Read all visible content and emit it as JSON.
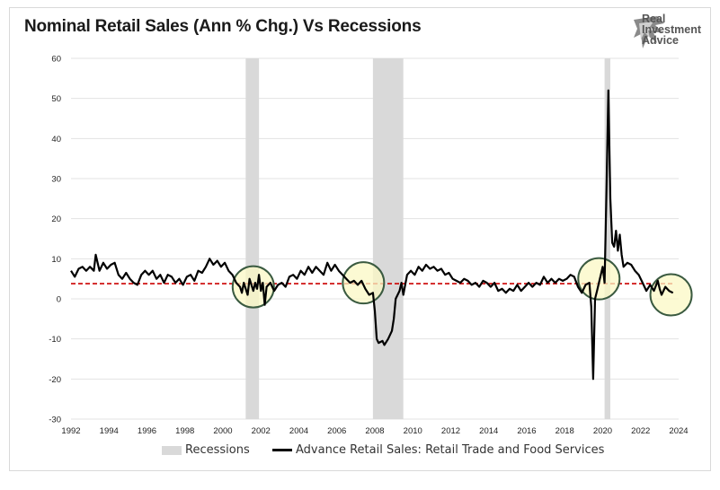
{
  "header": {
    "title": "Nominal Retail Sales (Ann % Chg.)  Vs Recessions",
    "logo_lines": [
      "Real",
      "Investment",
      "Advice"
    ]
  },
  "chart_data": {
    "type": "line",
    "title": "Nominal Retail Sales (Ann % Chg.)  Vs Recessions",
    "xlabel": "",
    "ylabel": "",
    "xlim": [
      1992,
      2024
    ],
    "ylim": [
      -30,
      60
    ],
    "xticks": [
      "1992",
      "1994",
      "1996",
      "1998",
      "2000",
      "2002",
      "2004",
      "2006",
      "2008",
      "2010",
      "2012",
      "2014",
      "2016",
      "2018",
      "2020",
      "2022",
      "2024"
    ],
    "yticks": [
      "60",
      "50",
      "40",
      "30",
      "20",
      "10",
      "0",
      "-10",
      "-20",
      "-30"
    ],
    "grid": "horizontal",
    "legend_position": "bottom",
    "recessions": [
      [
        2001.2,
        2001.9
      ],
      [
        2007.9,
        2009.5
      ],
      [
        2020.1,
        2020.4
      ]
    ],
    "reference_line": 3.8,
    "highlights": [
      {
        "x": 2001.6,
        "y": 3
      },
      {
        "x": 2007.4,
        "y": 4
      },
      {
        "x": 2019.8,
        "y": 5
      },
      {
        "x": 2023.6,
        "y": 1
      }
    ],
    "series": [
      {
        "name": "Advance Retail Sales: Retail Trade and Food Services",
        "color": "#000000",
        "points": [
          [
            1992.0,
            7
          ],
          [
            1992.2,
            5.5
          ],
          [
            1992.4,
            7.5
          ],
          [
            1992.6,
            8
          ],
          [
            1992.8,
            7
          ],
          [
            1993.0,
            8
          ],
          [
            1993.2,
            7
          ],
          [
            1993.3,
            11
          ],
          [
            1993.5,
            7
          ],
          [
            1993.7,
            9
          ],
          [
            1993.9,
            7.5
          ],
          [
            1994.1,
            8.5
          ],
          [
            1994.3,
            9
          ],
          [
            1994.5,
            6
          ],
          [
            1994.7,
            5
          ],
          [
            1994.9,
            6.5
          ],
          [
            1995.1,
            5
          ],
          [
            1995.3,
            4
          ],
          [
            1995.5,
            3.5
          ],
          [
            1995.7,
            6
          ],
          [
            1995.9,
            7
          ],
          [
            1996.1,
            6
          ],
          [
            1996.3,
            7
          ],
          [
            1996.5,
            5
          ],
          [
            1996.7,
            6
          ],
          [
            1996.9,
            4
          ],
          [
            1997.1,
            6
          ],
          [
            1997.3,
            5.5
          ],
          [
            1997.5,
            4
          ],
          [
            1997.7,
            5
          ],
          [
            1997.9,
            3.5
          ],
          [
            1998.1,
            5.5
          ],
          [
            1998.3,
            6
          ],
          [
            1998.5,
            4.5
          ],
          [
            1998.7,
            7
          ],
          [
            1998.9,
            6.5
          ],
          [
            1999.1,
            8
          ],
          [
            1999.3,
            10
          ],
          [
            1999.5,
            8.5
          ],
          [
            1999.7,
            9.5
          ],
          [
            1999.9,
            8
          ],
          [
            2000.1,
            9
          ],
          [
            2000.3,
            7
          ],
          [
            2000.5,
            6
          ],
          [
            2000.7,
            4
          ],
          [
            2000.9,
            3
          ],
          [
            2001.0,
            1.5
          ],
          [
            2001.1,
            4
          ],
          [
            2001.3,
            1
          ],
          [
            2001.4,
            5
          ],
          [
            2001.6,
            2
          ],
          [
            2001.7,
            4
          ],
          [
            2001.8,
            2.5
          ],
          [
            2001.9,
            6
          ],
          [
            2002.0,
            2
          ],
          [
            2002.1,
            4
          ],
          [
            2002.2,
            -1.5
          ],
          [
            2002.3,
            3
          ],
          [
            2002.5,
            4
          ],
          [
            2002.7,
            2
          ],
          [
            2002.9,
            3.5
          ],
          [
            2003.1,
            4
          ],
          [
            2003.3,
            3
          ],
          [
            2003.5,
            5.5
          ],
          [
            2003.7,
            6
          ],
          [
            2003.9,
            5
          ],
          [
            2004.1,
            7
          ],
          [
            2004.3,
            6
          ],
          [
            2004.5,
            8
          ],
          [
            2004.7,
            6.5
          ],
          [
            2004.9,
            8
          ],
          [
            2005.1,
            7
          ],
          [
            2005.3,
            6
          ],
          [
            2005.5,
            9
          ],
          [
            2005.7,
            7
          ],
          [
            2005.9,
            8.5
          ],
          [
            2006.1,
            7
          ],
          [
            2006.3,
            6
          ],
          [
            2006.5,
            5
          ],
          [
            2006.7,
            4
          ],
          [
            2006.9,
            4.5
          ],
          [
            2007.1,
            3.5
          ],
          [
            2007.3,
            4.5
          ],
          [
            2007.5,
            2.5
          ],
          [
            2007.7,
            1
          ],
          [
            2007.9,
            1.5
          ],
          [
            2008.0,
            -3
          ],
          [
            2008.1,
            -10
          ],
          [
            2008.2,
            -11
          ],
          [
            2008.4,
            -10.5
          ],
          [
            2008.5,
            -11.5
          ],
          [
            2008.7,
            -10
          ],
          [
            2008.9,
            -8
          ],
          [
            2009.0,
            -5
          ],
          [
            2009.1,
            0
          ],
          [
            2009.3,
            2
          ],
          [
            2009.4,
            4
          ],
          [
            2009.5,
            1
          ],
          [
            2009.7,
            6
          ],
          [
            2009.9,
            7
          ],
          [
            2010.1,
            6
          ],
          [
            2010.3,
            8
          ],
          [
            2010.5,
            7
          ],
          [
            2010.7,
            8.5
          ],
          [
            2010.9,
            7.5
          ],
          [
            2011.1,
            8
          ],
          [
            2011.3,
            7
          ],
          [
            2011.5,
            7.5
          ],
          [
            2011.7,
            6
          ],
          [
            2011.9,
            6.5
          ],
          [
            2012.1,
            5
          ],
          [
            2012.3,
            4.5
          ],
          [
            2012.5,
            4
          ],
          [
            2012.7,
            5
          ],
          [
            2012.9,
            4.5
          ],
          [
            2013.1,
            3.5
          ],
          [
            2013.3,
            4
          ],
          [
            2013.5,
            3
          ],
          [
            2013.7,
            4.5
          ],
          [
            2013.9,
            4
          ],
          [
            2014.1,
            3
          ],
          [
            2014.3,
            4
          ],
          [
            2014.5,
            2
          ],
          [
            2014.7,
            2.5
          ],
          [
            2014.9,
            1.5
          ],
          [
            2015.1,
            2.5
          ],
          [
            2015.3,
            2
          ],
          [
            2015.5,
            3.5
          ],
          [
            2015.7,
            2
          ],
          [
            2015.9,
            3
          ],
          [
            2016.1,
            4
          ],
          [
            2016.3,
            3
          ],
          [
            2016.5,
            4
          ],
          [
            2016.7,
            3.5
          ],
          [
            2016.9,
            5.5
          ],
          [
            2017.1,
            4
          ],
          [
            2017.3,
            5
          ],
          [
            2017.5,
            4
          ],
          [
            2017.7,
            5
          ],
          [
            2017.9,
            4.5
          ],
          [
            2018.1,
            5
          ],
          [
            2018.3,
            6
          ],
          [
            2018.5,
            5.5
          ],
          [
            2018.7,
            3
          ],
          [
            2018.9,
            1.5
          ],
          [
            2019.1,
            3.5
          ],
          [
            2019.3,
            4
          ],
          [
            2019.4,
            -2
          ],
          [
            2019.5,
            -20
          ],
          [
            2019.6,
            0
          ],
          [
            2019.7,
            2
          ],
          [
            2019.8,
            4
          ],
          [
            2019.9,
            6
          ],
          [
            2020.0,
            8
          ],
          [
            2020.1,
            4
          ],
          [
            2020.2,
            27
          ],
          [
            2020.3,
            52
          ],
          [
            2020.4,
            25
          ],
          [
            2020.5,
            14
          ],
          [
            2020.6,
            13
          ],
          [
            2020.7,
            17
          ],
          [
            2020.8,
            12
          ],
          [
            2020.9,
            16
          ],
          [
            2021.0,
            11
          ],
          [
            2021.1,
            8
          ],
          [
            2021.3,
            9
          ],
          [
            2021.5,
            8.5
          ],
          [
            2021.7,
            7
          ],
          [
            2021.9,
            6
          ],
          [
            2022.1,
            4
          ],
          [
            2022.3,
            2
          ],
          [
            2022.5,
            3.5
          ],
          [
            2022.7,
            2
          ],
          [
            2022.9,
            4.5
          ],
          [
            2023.0,
            2.5
          ],
          [
            2023.1,
            1
          ],
          [
            2023.3,
            3
          ],
          [
            2023.5,
            2
          ],
          [
            2023.7,
            1.5
          ]
        ]
      }
    ]
  },
  "legend": {
    "recessions_label": "Recessions",
    "series_label": "Advance Retail Sales: Retail Trade and Food Services"
  }
}
